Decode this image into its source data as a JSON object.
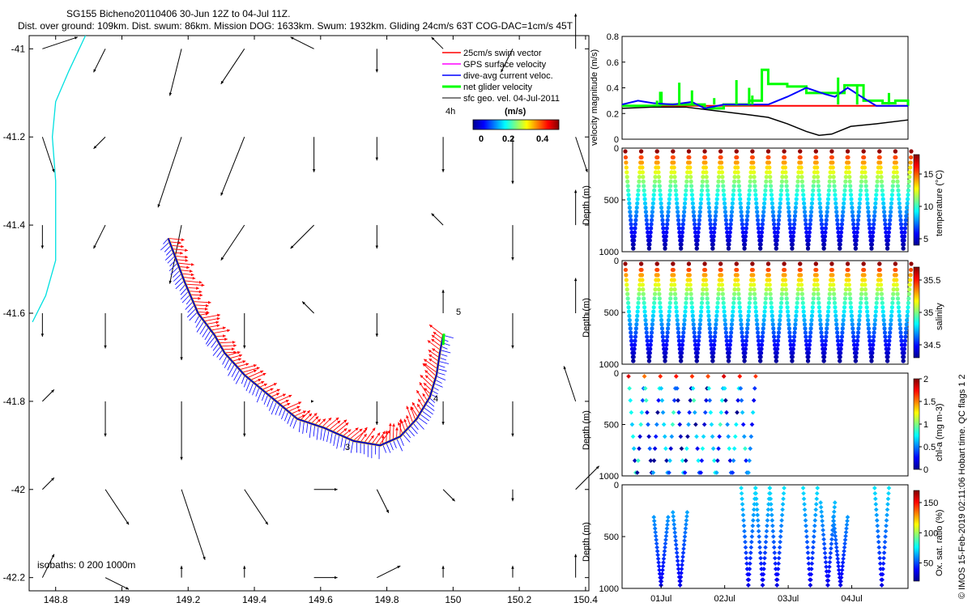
{
  "header": {
    "title": "SG155 Bicheno20110406 30-Jun 12Z to 04-Jul 11Z.",
    "subtitle": "Dist. over ground: 109km. Dist. swum: 86km. Mission DOG: 1633km. Swum: 1932km. Gliding 24cm/s 63T COG-DAC=1cm/s 45T"
  },
  "side_note": "© IMOS 15-Feb-2019 02:11:06 Hobart time. QC flags 1  2",
  "colors": {
    "swim": "#ff0000",
    "gps": "#ff00ff",
    "dac": "#0000ff",
    "net": "#00ff00",
    "geo": "#000000",
    "coast": "#00e0e0",
    "track": "#ffd000"
  },
  "chart_data": [
    {
      "type": "scatter",
      "id": "map",
      "xlim": [
        148.72,
        150.41
      ],
      "ylim": [
        -42.23,
        -40.97
      ],
      "x_ticks": [
        148.8,
        149,
        149.2,
        149.4,
        149.6,
        149.8,
        150,
        150.2,
        150.4
      ],
      "y_ticks": [
        -41,
        -41.2,
        -41.4,
        -41.6,
        -41.8,
        -42,
        -42.2
      ],
      "x_tick_labels": [
        "148.8",
        "149",
        "149.2",
        "149.4",
        "149.6",
        "149.8",
        "150",
        "150.2",
        "150.4"
      ],
      "y_tick_labels": [
        "-41",
        "-41.2",
        "-41.4",
        "-41.6",
        "-41.8",
        "-42",
        "-42.2"
      ],
      "legend": {
        "placement": "top-right",
        "entries": [
          "25cm/s swim vector",
          "GPS surface velocity",
          "dive-avg current veloc.",
          "net glider velocity",
          "sfc geo. vel. 04-Jul-2011"
        ]
      },
      "colorbar": {
        "label": "(m/s)",
        "ticks": [
          "0",
          "0.2",
          "0.4"
        ],
        "range": [
          0,
          0.5
        ]
      },
      "interval_label": "4h",
      "isobath_note": "isobaths: 0   200  1000m",
      "day_markers": [
        {
          "label": "3",
          "x": 149.69,
          "y": -41.87
        },
        {
          "label": "4",
          "x": 149.95,
          "y": -41.79
        },
        {
          "label": "5",
          "x": 150.04,
          "y": -41.58
        }
      ],
      "track": [
        [
          149.14,
          -41.43
        ],
        [
          149.16,
          -41.47
        ],
        [
          149.19,
          -41.53
        ],
        [
          149.23,
          -41.6
        ],
        [
          149.28,
          -41.65
        ],
        [
          149.31,
          -41.69
        ],
        [
          149.37,
          -41.74
        ],
        [
          149.45,
          -41.79
        ],
        [
          149.53,
          -41.84
        ],
        [
          149.61,
          -41.86
        ],
        [
          149.7,
          -41.89
        ],
        [
          149.78,
          -41.9
        ],
        [
          149.84,
          -41.88
        ],
        [
          149.89,
          -41.84
        ],
        [
          149.93,
          -41.79
        ],
        [
          149.95,
          -41.74
        ],
        [
          149.96,
          -41.69
        ],
        [
          149.97,
          -41.65
        ]
      ],
      "coast": [
        [
          148.89,
          -40.97
        ],
        [
          148.84,
          -41.05
        ],
        [
          148.8,
          -41.12
        ],
        [
          148.79,
          -41.2
        ],
        [
          148.8,
          -41.3
        ],
        [
          148.8,
          -41.4
        ],
        [
          148.8,
          -41.48
        ],
        [
          148.77,
          -41.56
        ],
        [
          148.73,
          -41.62
        ]
      ],
      "geo_vectors": [
        [
          148.76,
          -41.0,
          0.03,
          0.01
        ],
        [
          148.95,
          -41.0,
          -0.01,
          -0.02
        ],
        [
          149.18,
          -41.0,
          -0.01,
          -0.04
        ],
        [
          149.37,
          -41.0,
          -0.02,
          -0.03
        ],
        [
          149.58,
          -41.0,
          -0.02,
          0.01
        ],
        [
          149.77,
          -41.0,
          0.0,
          -0.02
        ],
        [
          149.97,
          -41.0,
          -0.01,
          0.01
        ],
        [
          150.18,
          -41.0,
          -0.01,
          -0.02
        ],
        [
          150.37,
          -41.0,
          0.0,
          0.03
        ],
        [
          148.76,
          -41.2,
          0.01,
          -0.03
        ],
        [
          148.95,
          -41.2,
          -0.01,
          -0.01
        ],
        [
          149.18,
          -41.2,
          -0.02,
          -0.06
        ],
        [
          149.37,
          -41.2,
          -0.02,
          -0.05
        ],
        [
          149.58,
          -41.2,
          0.0,
          -0.03
        ],
        [
          149.77,
          -41.2,
          0.0,
          -0.02
        ],
        [
          149.97,
          -41.2,
          0.0,
          -0.03
        ],
        [
          150.18,
          -41.2,
          0.0,
          -0.04
        ],
        [
          150.37,
          -41.2,
          0.01,
          -0.03
        ],
        [
          148.76,
          -41.4,
          0.0,
          -0.02
        ],
        [
          148.95,
          -41.4,
          -0.01,
          -0.02
        ],
        [
          149.18,
          -41.4,
          -0.01,
          -0.05
        ],
        [
          149.37,
          -41.4,
          -0.02,
          -0.03
        ],
        [
          149.58,
          -41.4,
          -0.02,
          -0.02
        ],
        [
          149.77,
          -41.4,
          0.0,
          -0.02
        ],
        [
          149.97,
          -41.4,
          -0.01,
          0.01
        ],
        [
          150.18,
          -41.4,
          0.0,
          -0.03
        ],
        [
          150.37,
          -41.4,
          0.0,
          0.03
        ],
        [
          148.76,
          -41.6,
          0.0,
          -0.02
        ],
        [
          148.95,
          -41.6,
          0.0,
          -0.03
        ],
        [
          149.18,
          -41.6,
          0.0,
          -0.04
        ],
        [
          149.37,
          -41.6,
          0.0,
          -0.03
        ],
        [
          149.58,
          -41.6,
          -0.01,
          0.01
        ],
        [
          149.77,
          -41.6,
          0.0,
          -0.02
        ],
        [
          149.97,
          -41.6,
          0.0,
          0.02
        ],
        [
          150.18,
          -41.6,
          0.0,
          -0.03
        ],
        [
          150.37,
          -41.6,
          0.0,
          0.03
        ],
        [
          148.76,
          -41.8,
          0.01,
          0.01
        ],
        [
          148.95,
          -41.8,
          0.0,
          -0.03
        ],
        [
          149.18,
          -41.8,
          0.0,
          -0.05
        ],
        [
          149.37,
          -41.8,
          0.0,
          -0.03
        ],
        [
          149.58,
          -41.8,
          0.0,
          0.0
        ],
        [
          149.77,
          -41.8,
          0.0,
          -0.02
        ],
        [
          149.97,
          -41.8,
          0.0,
          -0.02
        ],
        [
          150.18,
          -41.8,
          0.0,
          -0.03
        ],
        [
          150.37,
          -41.8,
          -0.01,
          0.03
        ],
        [
          148.76,
          -42.0,
          0.01,
          0.01
        ],
        [
          148.95,
          -42.0,
          0.02,
          -0.03
        ],
        [
          149.18,
          -42.0,
          0.02,
          -0.06
        ],
        [
          149.37,
          -42.0,
          0.02,
          -0.03
        ],
        [
          149.58,
          -42.0,
          0.02,
          0.0
        ],
        [
          149.77,
          -42.0,
          0.01,
          -0.02
        ],
        [
          149.97,
          -42.0,
          0.01,
          -0.01
        ],
        [
          150.18,
          -42.0,
          0.0,
          -0.01
        ],
        [
          150.37,
          -42.0,
          0.02,
          0.02
        ],
        [
          148.76,
          -42.2,
          0.01,
          0.02
        ],
        [
          148.95,
          -42.2,
          0.02,
          -0.01
        ],
        [
          149.18,
          -42.2,
          0.0,
          0.01
        ],
        [
          149.37,
          -42.2,
          0.0,
          0.01
        ],
        [
          149.58,
          -42.2,
          0.02,
          0.0
        ],
        [
          149.77,
          -42.2,
          0.02,
          0.01
        ],
        [
          149.97,
          -42.2,
          0.0,
          0.01
        ],
        [
          150.18,
          -42.2,
          0.0,
          0.01
        ],
        [
          150.37,
          -42.2,
          0.0,
          0.02
        ]
      ]
    },
    {
      "type": "line",
      "id": "velocity",
      "ylabel": "velocity magnitude (m/s)",
      "xlim": [
        0,
        4.5
      ],
      "ylim": [
        0,
        0.8
      ],
      "y_ticks": [
        0,
        0.2,
        0.4,
        0.6,
        0.8
      ],
      "y_tick_labels": [
        "0",
        "0.2",
        "0.4",
        "0.6",
        "0.8"
      ],
      "series": [
        {
          "color": "#ff0000",
          "width": 2,
          "points": [
            [
              0,
              0.26
            ],
            [
              4.5,
              0.26
            ]
          ]
        },
        {
          "color": "#00ff00",
          "width": 3,
          "step": true,
          "points": [
            [
              0,
              0.26
            ],
            [
              0.5,
              0.26
            ],
            [
              0.6,
              0.36
            ],
            [
              0.62,
              0.27
            ],
            [
              1.2,
              0.27
            ],
            [
              1.3,
              0.24
            ],
            [
              1.6,
              0.27
            ],
            [
              2.0,
              0.3
            ],
            [
              2.2,
              0.54
            ],
            [
              2.3,
              0.43
            ],
            [
              2.6,
              0.41
            ],
            [
              2.9,
              0.36
            ],
            [
              3.2,
              0.36
            ],
            [
              3.5,
              0.42
            ],
            [
              3.8,
              0.3
            ],
            [
              4.1,
              0.28
            ],
            [
              4.3,
              0.3
            ],
            [
              4.5,
              0.26
            ]
          ]
        },
        {
          "color": "#0000ff",
          "width": 2,
          "points": [
            [
              0,
              0.27
            ],
            [
              0.25,
              0.3
            ],
            [
              0.5,
              0.28
            ],
            [
              0.8,
              0.27
            ],
            [
              1.1,
              0.29
            ],
            [
              1.3,
              0.24
            ],
            [
              1.6,
              0.27
            ],
            [
              1.9,
              0.27
            ],
            [
              2.3,
              0.27
            ],
            [
              2.6,
              0.33
            ],
            [
              2.9,
              0.4
            ],
            [
              3.2,
              0.35
            ],
            [
              3.35,
              0.33
            ],
            [
              3.55,
              0.4
            ],
            [
              3.8,
              0.32
            ],
            [
              4.0,
              0.26
            ],
            [
              4.5,
              0.26
            ]
          ]
        },
        {
          "color": "#000000",
          "width": 1.5,
          "points": [
            [
              0,
              0.24
            ],
            [
              0.5,
              0.25
            ],
            [
              1.0,
              0.25
            ],
            [
              1.5,
              0.22
            ],
            [
              2.0,
              0.19
            ],
            [
              2.3,
              0.17
            ],
            [
              2.6,
              0.12
            ],
            [
              2.9,
              0.06
            ],
            [
              3.1,
              0.03
            ],
            [
              3.3,
              0.04
            ],
            [
              3.6,
              0.1
            ],
            [
              4.0,
              0.12
            ],
            [
              4.5,
              0.15
            ]
          ]
        }
      ]
    },
    {
      "type": "scatter",
      "id": "temperature",
      "ylabel": "Depth (m)",
      "color_label": "temperature (°C)",
      "ylim": [
        0,
        1000
      ],
      "y_tick_labels": [
        "0",
        "500",
        "1000"
      ],
      "colorbar_range": [
        4,
        18
      ],
      "colorbar_ticks": [
        "5",
        "10",
        "15"
      ],
      "dives": 18,
      "surface_value": 15,
      "deep_value": 4
    },
    {
      "type": "scatter",
      "id": "salinity",
      "ylabel": "Depth (m)",
      "color_label": "salinity",
      "ylim": [
        0,
        1000
      ],
      "y_tick_labels": [
        "0",
        "500",
        "1000"
      ],
      "colorbar_range": [
        34.3,
        35.7
      ],
      "colorbar_ticks": [
        "34.5",
        "35",
        "35.5"
      ],
      "dives": 18,
      "surface_value": 35.4,
      "deep_value": 34.4
    },
    {
      "type": "scatter",
      "id": "chla",
      "ylabel": "Depth (m)",
      "color_label": "chl-a (mg m-3)",
      "ylim": [
        0,
        1000
      ],
      "y_tick_labels": [
        "0",
        "500",
        "1000"
      ],
      "colorbar_range": [
        0,
        2
      ],
      "colorbar_ticks": [
        "0",
        "0.5",
        "1",
        "1.5",
        "2"
      ],
      "x_range_days": [
        0,
        1.85
      ]
    },
    {
      "type": "scatter",
      "id": "oxygen",
      "ylabel": "Depth (m)",
      "color_label": "Ox. sat. ratio (%)",
      "ylim": [
        0,
        1000
      ],
      "y_tick_labels": [
        "0",
        "500",
        "1000"
      ],
      "colorbar_range": [
        20,
        170
      ],
      "colorbar_ticks": [
        "50",
        "100",
        "150"
      ],
      "x_tick_labels": [
        "01Jul",
        "02Jul",
        "03Jul",
        "04Jul"
      ],
      "x_ticks_days": [
        0.5,
        1.5,
        2.5,
        3.5
      ]
    }
  ]
}
